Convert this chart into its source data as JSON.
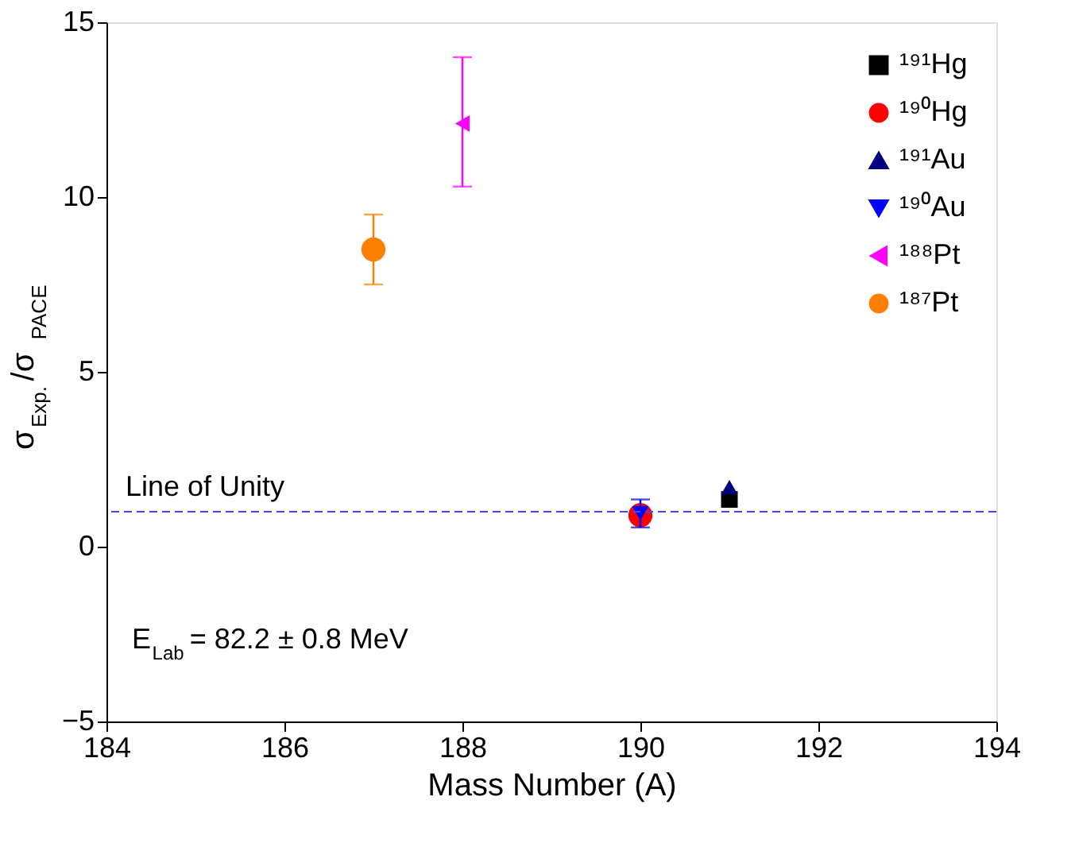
{
  "chart_data": {
    "type": "scatter",
    "xlabel": "Mass Number (A)",
    "ylabel": "σ$_{Exp.}$/σ$_{PACE}$",
    "xlim": [
      184,
      194
    ],
    "xticks": [
      184,
      186,
      188,
      190,
      192,
      194
    ],
    "ylim": [
      -5,
      15
    ],
    "yticks": [
      -5,
      0,
      5,
      10,
      15
    ],
    "grid": false,
    "legend": "top right",
    "series": [
      {
        "name": "¹⁹¹Hg",
        "color": "#000000",
        "marker": "square",
        "x": [
          191
        ],
        "values": [
          1.35
        ]
      },
      {
        "name": "¹⁹⁰Hg",
        "color": "#ff0000",
        "marker": "circle",
        "x": [
          190
        ],
        "values": [
          0.9
        ]
      },
      {
        "name": "¹⁹¹Au",
        "color": "#000080",
        "marker": "triangle-up",
        "x": [
          191
        ],
        "values": [
          1.7
        ]
      },
      {
        "name": "¹⁹⁰Au",
        "color": "#0000ff",
        "marker": "triangle-down",
        "x": [
          190
        ],
        "values": [
          0.95
        ],
        "errors": [
          0.4
        ]
      },
      {
        "name": "¹⁸⁸Pt",
        "color": "#ff00ff",
        "marker": "triangle-left",
        "x": [
          188
        ],
        "values": [
          12.1
        ],
        "errors": [
          [
            10.3,
            14.0
          ]
        ]
      },
      {
        "name": "¹⁸⁷Pt",
        "color": "#ff8000",
        "marker": "circle",
        "x": [
          187
        ],
        "values": [
          8.5
        ],
        "errors": [
          [
            7.5,
            9.5
          ]
        ]
      }
    ],
    "ref_lines": [
      {
        "axis": "y",
        "value": 1,
        "label": "Line of Unity",
        "color": "#4444ff",
        "line_style": "dashed"
      }
    ],
    "annotations": [
      "E$_{Lab}$ = 82.2 ± 0.8 MeV"
    ]
  }
}
